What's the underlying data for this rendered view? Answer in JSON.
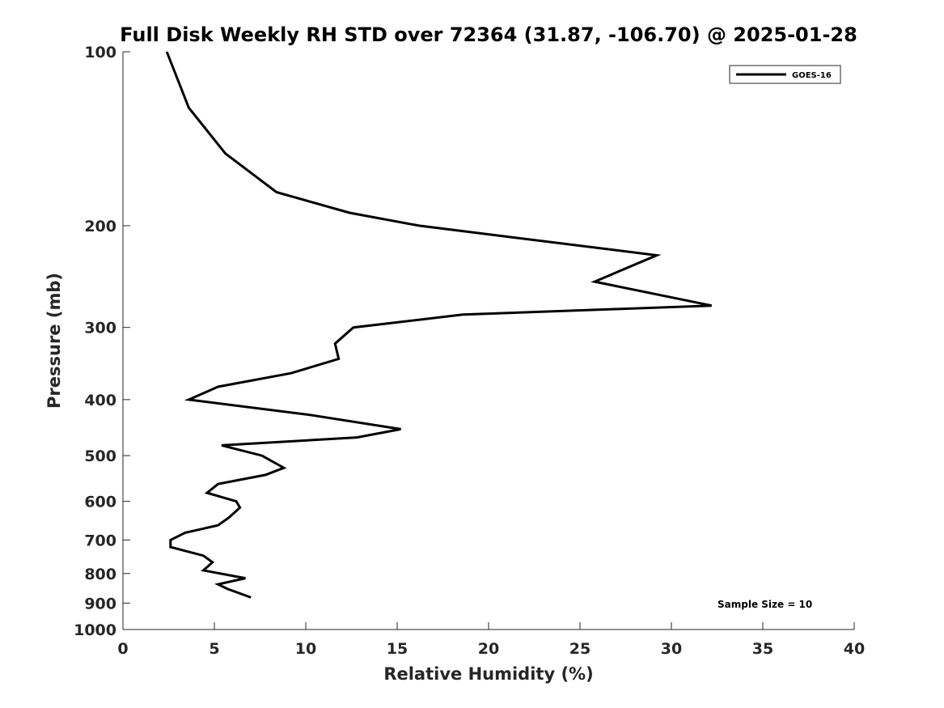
{
  "chart_data": {
    "type": "line",
    "title": "Full Disk Weekly RH STD over 72364 (31.87, -106.70) @ 2025-01-28",
    "xlabel": "Relative Humidity (%)",
    "ylabel": "Pressure (mb)",
    "xlim": [
      0,
      40
    ],
    "ylim": [
      100,
      1000
    ],
    "y_scale": "log",
    "y_reversed": true,
    "grid": false,
    "legend_position": "top-right",
    "x_ticks": [
      0,
      5,
      10,
      15,
      20,
      25,
      30,
      35,
      40
    ],
    "y_ticks": [
      100,
      200,
      300,
      400,
      500,
      600,
      700,
      800,
      900,
      1000
    ],
    "series": [
      {
        "name": "GOES-16",
        "color": "#000000",
        "points": [
          {
            "x": 2.4,
            "y": 100
          },
          {
            "x": 3.6,
            "y": 125
          },
          {
            "x": 5.6,
            "y": 150
          },
          {
            "x": 8.4,
            "y": 175
          },
          {
            "x": 12.4,
            "y": 190
          },
          {
            "x": 16.2,
            "y": 200
          },
          {
            "x": 29.2,
            "y": 225
          },
          {
            "x": 25.8,
            "y": 250
          },
          {
            "x": 32.2,
            "y": 275
          },
          {
            "x": 18.6,
            "y": 285
          },
          {
            "x": 12.6,
            "y": 300
          },
          {
            "x": 11.6,
            "y": 320
          },
          {
            "x": 11.8,
            "y": 340
          },
          {
            "x": 9.2,
            "y": 360
          },
          {
            "x": 5.2,
            "y": 380
          },
          {
            "x": 3.6,
            "y": 400
          },
          {
            "x": 10.2,
            "y": 425
          },
          {
            "x": 15.2,
            "y": 450
          },
          {
            "x": 12.8,
            "y": 465
          },
          {
            "x": 5.4,
            "y": 480
          },
          {
            "x": 7.6,
            "y": 500
          },
          {
            "x": 8.8,
            "y": 525
          },
          {
            "x": 7.8,
            "y": 540
          },
          {
            "x": 5.2,
            "y": 560
          },
          {
            "x": 4.6,
            "y": 580
          },
          {
            "x": 6.2,
            "y": 600
          },
          {
            "x": 6.4,
            "y": 615
          },
          {
            "x": 5.8,
            "y": 640
          },
          {
            "x": 5.2,
            "y": 660
          },
          {
            "x": 3.4,
            "y": 680
          },
          {
            "x": 2.6,
            "y": 700
          },
          {
            "x": 2.6,
            "y": 720
          },
          {
            "x": 4.4,
            "y": 745
          },
          {
            "x": 4.9,
            "y": 765
          },
          {
            "x": 4.4,
            "y": 790
          },
          {
            "x": 6.7,
            "y": 815
          },
          {
            "x": 5.2,
            "y": 835
          },
          {
            "x": 5.7,
            "y": 850
          },
          {
            "x": 7.0,
            "y": 880
          }
        ]
      }
    ],
    "annotations": [
      {
        "text": "Sample Size = 10",
        "position": "bottom-right"
      }
    ]
  }
}
